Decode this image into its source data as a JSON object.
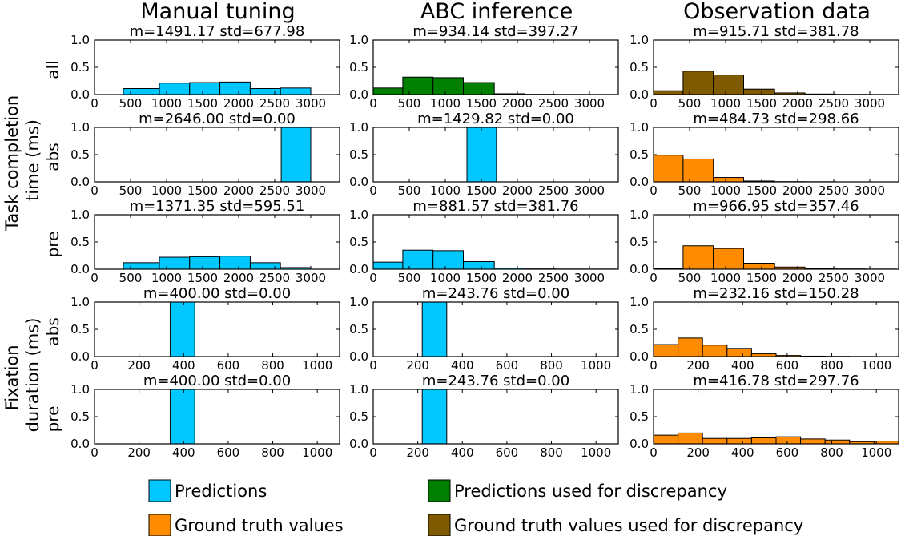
{
  "colors": {
    "pred": "#00c8ff",
    "pred_disc": "#007f00",
    "gt": "#ff8c00",
    "gt_disc": "#7f5a00"
  },
  "columns": [
    "Manual tuning",
    "ABC inference",
    "Observation data"
  ],
  "group_labels": [
    "Task completion time (ms)",
    "Fixation duration (ms)"
  ],
  "group_label_lines": [
    [
      "Task completion",
      "time (ms)"
    ],
    [
      "Fixation",
      "duration (ms)"
    ]
  ],
  "row_labels": [
    "all",
    "abs",
    "pre",
    "abs",
    "pre"
  ],
  "legend": [
    {
      "label": "Predictions",
      "color": "pred"
    },
    {
      "label": "Predictions used for discrepancy",
      "color": "pred_disc"
    },
    {
      "label": "Ground truth values",
      "color": "gt"
    },
    {
      "label": "Ground truth values used for discrepancy",
      "color": "gt_disc"
    }
  ],
  "chart_data": [
    {
      "type": "bar",
      "row": 0,
      "col": 0,
      "title": "m=1491.17 std=677.98",
      "color": "pred",
      "xlim": [
        0,
        3400
      ],
      "ylim": [
        0,
        1.0
      ],
      "xticks": [
        0,
        500,
        1000,
        1500,
        2000,
        2500,
        3000
      ],
      "yticks": [
        "0.0",
        "0.5",
        "1.0"
      ],
      "bins": [
        [
          400,
          900,
          0.11
        ],
        [
          900,
          1320,
          0.21
        ],
        [
          1320,
          1740,
          0.22
        ],
        [
          1740,
          2160,
          0.23
        ],
        [
          2160,
          2580,
          0.11
        ],
        [
          2580,
          3000,
          0.12
        ]
      ]
    },
    {
      "type": "bar",
      "row": 0,
      "col": 1,
      "title": "m=934.14 std=397.27",
      "color": "pred_disc",
      "xlim": [
        0,
        3400
      ],
      "ylim": [
        0,
        1.0
      ],
      "xticks": [
        0,
        500,
        1000,
        1500,
        2000,
        2500,
        3000
      ],
      "yticks": [
        "0.0",
        "0.5",
        "1.0"
      ],
      "bins": [
        [
          0,
          410,
          0.12
        ],
        [
          410,
          830,
          0.32
        ],
        [
          830,
          1250,
          0.31
        ],
        [
          1250,
          1680,
          0.22
        ],
        [
          1680,
          2100,
          0.015
        ],
        [
          2100,
          2520,
          0.005
        ],
        [
          2520,
          2940,
          0.003
        ],
        [
          2940,
          3360,
          0.002
        ]
      ]
    },
    {
      "type": "bar",
      "row": 0,
      "col": 2,
      "title": "m=915.71 std=381.78",
      "color": "gt_disc",
      "xlim": [
        0,
        3400
      ],
      "ylim": [
        0,
        1.0
      ],
      "xticks": [
        0,
        500,
        1000,
        1500,
        2000,
        2500,
        3000
      ],
      "yticks": [
        "0.0",
        "0.5",
        "1.0"
      ],
      "bins": [
        [
          0,
          410,
          0.07
        ],
        [
          410,
          830,
          0.43
        ],
        [
          830,
          1250,
          0.36
        ],
        [
          1250,
          1680,
          0.1
        ],
        [
          1680,
          2100,
          0.03
        ],
        [
          2100,
          2520,
          0.01
        ],
        [
          2520,
          2940,
          0.004
        ],
        [
          2940,
          3360,
          0.002
        ]
      ]
    },
    {
      "type": "bar",
      "row": 1,
      "col": 0,
      "title": "m=2646.00 std=0.00",
      "color": "pred",
      "xlim": [
        0,
        3400
      ],
      "ylim": [
        0,
        1.0
      ],
      "xticks": [
        0,
        500,
        1000,
        1500,
        2000,
        2500,
        3000
      ],
      "yticks": [
        "0.0",
        "0.5",
        "1.0"
      ],
      "bins": [
        [
          2590,
          3000,
          1.0
        ]
      ]
    },
    {
      "type": "bar",
      "row": 1,
      "col": 1,
      "title": "m=1429.82 std=0.00",
      "color": "pred",
      "xlim": [
        0,
        3400
      ],
      "ylim": [
        0,
        1.0
      ],
      "xticks": [
        0,
        500,
        1000,
        1500,
        2000,
        2500,
        3000
      ],
      "yticks": [
        "0.0",
        "0.5",
        "1.0"
      ],
      "bins": [
        [
          1300,
          1710,
          1.0
        ]
      ]
    },
    {
      "type": "bar",
      "row": 1,
      "col": 2,
      "title": "m=484.73 std=298.66",
      "color": "gt",
      "xlim": [
        0,
        3400
      ],
      "ylim": [
        0,
        1.0
      ],
      "xticks": [
        0,
        500,
        1000,
        1500,
        2000,
        2500,
        3000
      ],
      "yticks": [
        "0.0",
        "0.5",
        "1.0"
      ],
      "bins": [
        [
          0,
          410,
          0.49
        ],
        [
          410,
          830,
          0.42
        ],
        [
          830,
          1250,
          0.08
        ],
        [
          1250,
          1680,
          0.015
        ],
        [
          1680,
          2100,
          0.004
        ],
        [
          2100,
          2520,
          0.002
        ]
      ]
    },
    {
      "type": "bar",
      "row": 2,
      "col": 0,
      "title": "m=1371.35 std=595.51",
      "color": "pred",
      "xlim": [
        0,
        3400
      ],
      "ylim": [
        0,
        1.0
      ],
      "xticks": [
        0,
        500,
        1000,
        1500,
        2000,
        2500,
        3000
      ],
      "yticks": [
        "0.0",
        "0.5",
        "1.0"
      ],
      "bins": [
        [
          400,
          900,
          0.12
        ],
        [
          900,
          1320,
          0.22
        ],
        [
          1320,
          1740,
          0.23
        ],
        [
          1740,
          2160,
          0.24
        ],
        [
          2160,
          2580,
          0.12
        ],
        [
          2580,
          3000,
          0.03
        ]
      ]
    },
    {
      "type": "bar",
      "row": 2,
      "col": 1,
      "title": "m=881.57 std=381.76",
      "color": "pred",
      "xlim": [
        0,
        3400
      ],
      "ylim": [
        0,
        1.0
      ],
      "xticks": [
        0,
        500,
        1000,
        1500,
        2000,
        2500,
        3000
      ],
      "yticks": [
        "0.0",
        "0.5",
        "1.0"
      ],
      "bins": [
        [
          0,
          410,
          0.13
        ],
        [
          410,
          830,
          0.35
        ],
        [
          830,
          1250,
          0.34
        ],
        [
          1250,
          1680,
          0.14
        ],
        [
          1680,
          2100,
          0.02
        ],
        [
          2100,
          2520,
          0.005
        ],
        [
          2520,
          2940,
          0.003
        ],
        [
          2940,
          3360,
          0.002
        ]
      ]
    },
    {
      "type": "bar",
      "row": 2,
      "col": 2,
      "title": "m=966.95 std=357.46",
      "color": "gt",
      "xlim": [
        0,
        3400
      ],
      "ylim": [
        0,
        1.0
      ],
      "xticks": [
        0,
        500,
        1000,
        1500,
        2000,
        2500,
        3000
      ],
      "yticks": [
        "0.0",
        "0.5",
        "1.0"
      ],
      "bins": [
        [
          0,
          410,
          0.01
        ],
        [
          410,
          830,
          0.43
        ],
        [
          830,
          1250,
          0.38
        ],
        [
          1250,
          1680,
          0.11
        ],
        [
          1680,
          2100,
          0.04
        ],
        [
          2100,
          2520,
          0.01
        ],
        [
          2520,
          2940,
          0.005
        ],
        [
          2940,
          3360,
          0.002
        ]
      ]
    },
    {
      "type": "bar",
      "row": 3,
      "col": 0,
      "title": "m=400.00 std=0.00",
      "color": "pred",
      "xlim": [
        0,
        1100
      ],
      "ylim": [
        0,
        1.0
      ],
      "xticks": [
        0,
        200,
        400,
        600,
        800,
        1000
      ],
      "yticks": [
        "0.0",
        "0.5",
        "1.0"
      ],
      "bins": [
        [
          340,
          450,
          1.0
        ]
      ]
    },
    {
      "type": "bar",
      "row": 3,
      "col": 1,
      "title": "m=243.76 std=0.00",
      "color": "pred",
      "xlim": [
        0,
        1100
      ],
      "ylim": [
        0,
        1.0
      ],
      "xticks": [
        0,
        200,
        400,
        600,
        800,
        1000
      ],
      "yticks": [
        "0.0",
        "0.5",
        "1.0"
      ],
      "bins": [
        [
          220,
          330,
          1.0
        ]
      ]
    },
    {
      "type": "bar",
      "row": 3,
      "col": 2,
      "title": "m=232.16 std=150.28",
      "color": "gt",
      "xlim": [
        0,
        1100
      ],
      "ylim": [
        0,
        1.0
      ],
      "xticks": [
        0,
        200,
        400,
        600,
        800,
        1000
      ],
      "yticks": [
        "0.0",
        "0.5",
        "1.0"
      ],
      "bins": [
        [
          0,
          110,
          0.22
        ],
        [
          110,
          220,
          0.34
        ],
        [
          220,
          330,
          0.21
        ],
        [
          330,
          440,
          0.15
        ],
        [
          440,
          550,
          0.05
        ],
        [
          550,
          660,
          0.02
        ],
        [
          660,
          770,
          0.008
        ],
        [
          770,
          880,
          0.004
        ],
        [
          880,
          990,
          0.002
        ]
      ]
    },
    {
      "type": "bar",
      "row": 4,
      "col": 0,
      "title": "m=400.00 std=0.00",
      "color": "pred",
      "xlim": [
        0,
        1100
      ],
      "ylim": [
        0,
        1.0
      ],
      "xticks": [
        0,
        200,
        400,
        600,
        800,
        1000
      ],
      "yticks": [
        "0.0",
        "0.5",
        "1.0"
      ],
      "bins": [
        [
          340,
          450,
          1.0
        ]
      ]
    },
    {
      "type": "bar",
      "row": 4,
      "col": 1,
      "title": "m=243.76 std=0.00",
      "color": "pred",
      "xlim": [
        0,
        1100
      ],
      "ylim": [
        0,
        1.0
      ],
      "xticks": [
        0,
        200,
        400,
        600,
        800,
        1000
      ],
      "yticks": [
        "0.0",
        "0.5",
        "1.0"
      ],
      "bins": [
        [
          220,
          330,
          1.0
        ]
      ]
    },
    {
      "type": "bar",
      "row": 4,
      "col": 2,
      "title": "m=416.78 std=297.76",
      "color": "gt",
      "xlim": [
        0,
        1100
      ],
      "ylim": [
        0,
        1.0
      ],
      "xticks": [
        0,
        200,
        400,
        600,
        800,
        1000
      ],
      "yticks": [
        "0.0",
        "0.5",
        "1.0"
      ],
      "bins": [
        [
          0,
          110,
          0.16
        ],
        [
          110,
          220,
          0.2
        ],
        [
          220,
          330,
          0.1
        ],
        [
          330,
          440,
          0.1
        ],
        [
          440,
          550,
          0.11
        ],
        [
          550,
          660,
          0.13
        ],
        [
          660,
          770,
          0.09
        ],
        [
          770,
          880,
          0.07
        ],
        [
          880,
          990,
          0.04
        ],
        [
          990,
          1100,
          0.05
        ]
      ]
    }
  ]
}
